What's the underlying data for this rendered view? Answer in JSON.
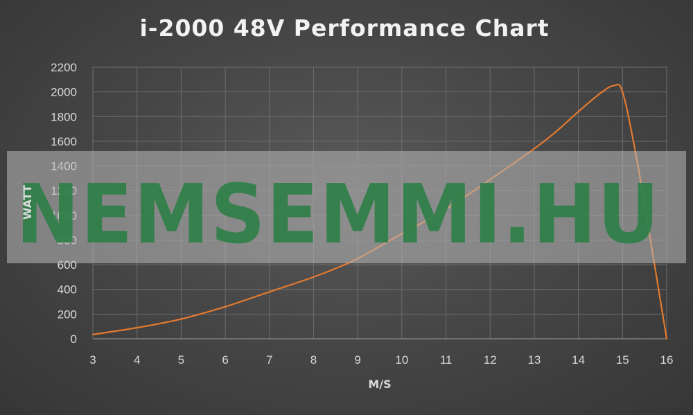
{
  "chart_data": {
    "type": "line",
    "title": "i-2000 48V Performance Chart",
    "xlabel": "M/S",
    "ylabel": "WATT",
    "xlim": [
      3,
      16
    ],
    "ylim": [
      0,
      2200
    ],
    "x_ticks": [
      3,
      4,
      5,
      6,
      7,
      8,
      9,
      10,
      11,
      12,
      13,
      14,
      15,
      16
    ],
    "y_ticks": [
      0,
      200,
      400,
      600,
      800,
      1000,
      1200,
      1400,
      1600,
      1800,
      2000,
      2200
    ],
    "grid": true,
    "legend": "none",
    "series": [
      {
        "color": "#e47a2e",
        "x": [
          3,
          4,
          5,
          6,
          7,
          8,
          8.5,
          9,
          10,
          11,
          12,
          13,
          13.5,
          14,
          14.5,
          14.8,
          15,
          15.3,
          15.6,
          16
        ],
        "y": [
          35,
          90,
          160,
          260,
          380,
          500,
          570,
          650,
          850,
          1050,
          1290,
          1540,
          1680,
          1840,
          1990,
          2050,
          2000,
          1500,
          870,
          0
        ]
      }
    ]
  },
  "watermark": {
    "text": "NEMSEMMI.HU",
    "color": "#2f7f49"
  }
}
